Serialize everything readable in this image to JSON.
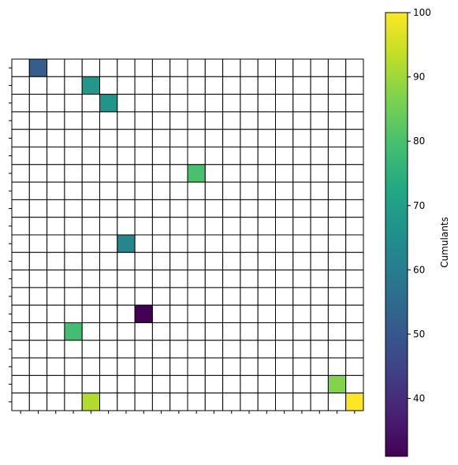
{
  "chart_data": {
    "type": "heatmap",
    "rows": 20,
    "cols": 20,
    "cells": [
      {
        "row": 0,
        "col": 1,
        "value": 52
      },
      {
        "row": 1,
        "col": 4,
        "value": 68
      },
      {
        "row": 2,
        "col": 5,
        "value": 67
      },
      {
        "row": 6,
        "col": 10,
        "value": 80
      },
      {
        "row": 10,
        "col": 6,
        "value": 63
      },
      {
        "row": 14,
        "col": 7,
        "value": 31
      },
      {
        "row": 15,
        "col": 3,
        "value": 79
      },
      {
        "row": 18,
        "col": 18,
        "value": 87
      },
      {
        "row": 19,
        "col": 4,
        "value": 92
      },
      {
        "row": 19,
        "col": 19,
        "value": 100
      }
    ],
    "empty_cell_color": "#ffffff",
    "grid_color": "#000000",
    "colormap": "viridis",
    "colorbar": {
      "label": "Cumulants",
      "min": 31,
      "max": 100,
      "ticks": [
        40,
        50,
        60,
        70,
        80,
        90,
        100
      ]
    },
    "x_ticks": "unlabeled",
    "y_ticks": "unlabeled"
  }
}
